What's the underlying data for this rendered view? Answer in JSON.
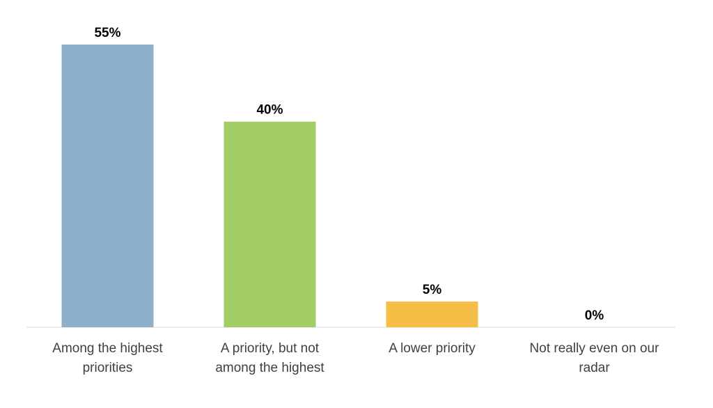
{
  "chart_data": {
    "type": "bar",
    "categories": [
      [
        "Among the highest",
        "priorities"
      ],
      [
        "A priority, but not",
        "among the highest"
      ],
      [
        "A lower priority"
      ],
      [
        "Not really even on our",
        "radar"
      ]
    ],
    "values": [
      55,
      40,
      5,
      0
    ],
    "value_labels": [
      "55%",
      "40%",
      "5%",
      "0%"
    ],
    "colors": [
      "#8EAFC9",
      "#A2CD65",
      "#F5BF47",
      "#8EAFC9"
    ],
    "ylim": [
      0,
      55
    ],
    "grid": false,
    "legend": "none",
    "title": "",
    "xlabel": "",
    "ylabel": ""
  }
}
